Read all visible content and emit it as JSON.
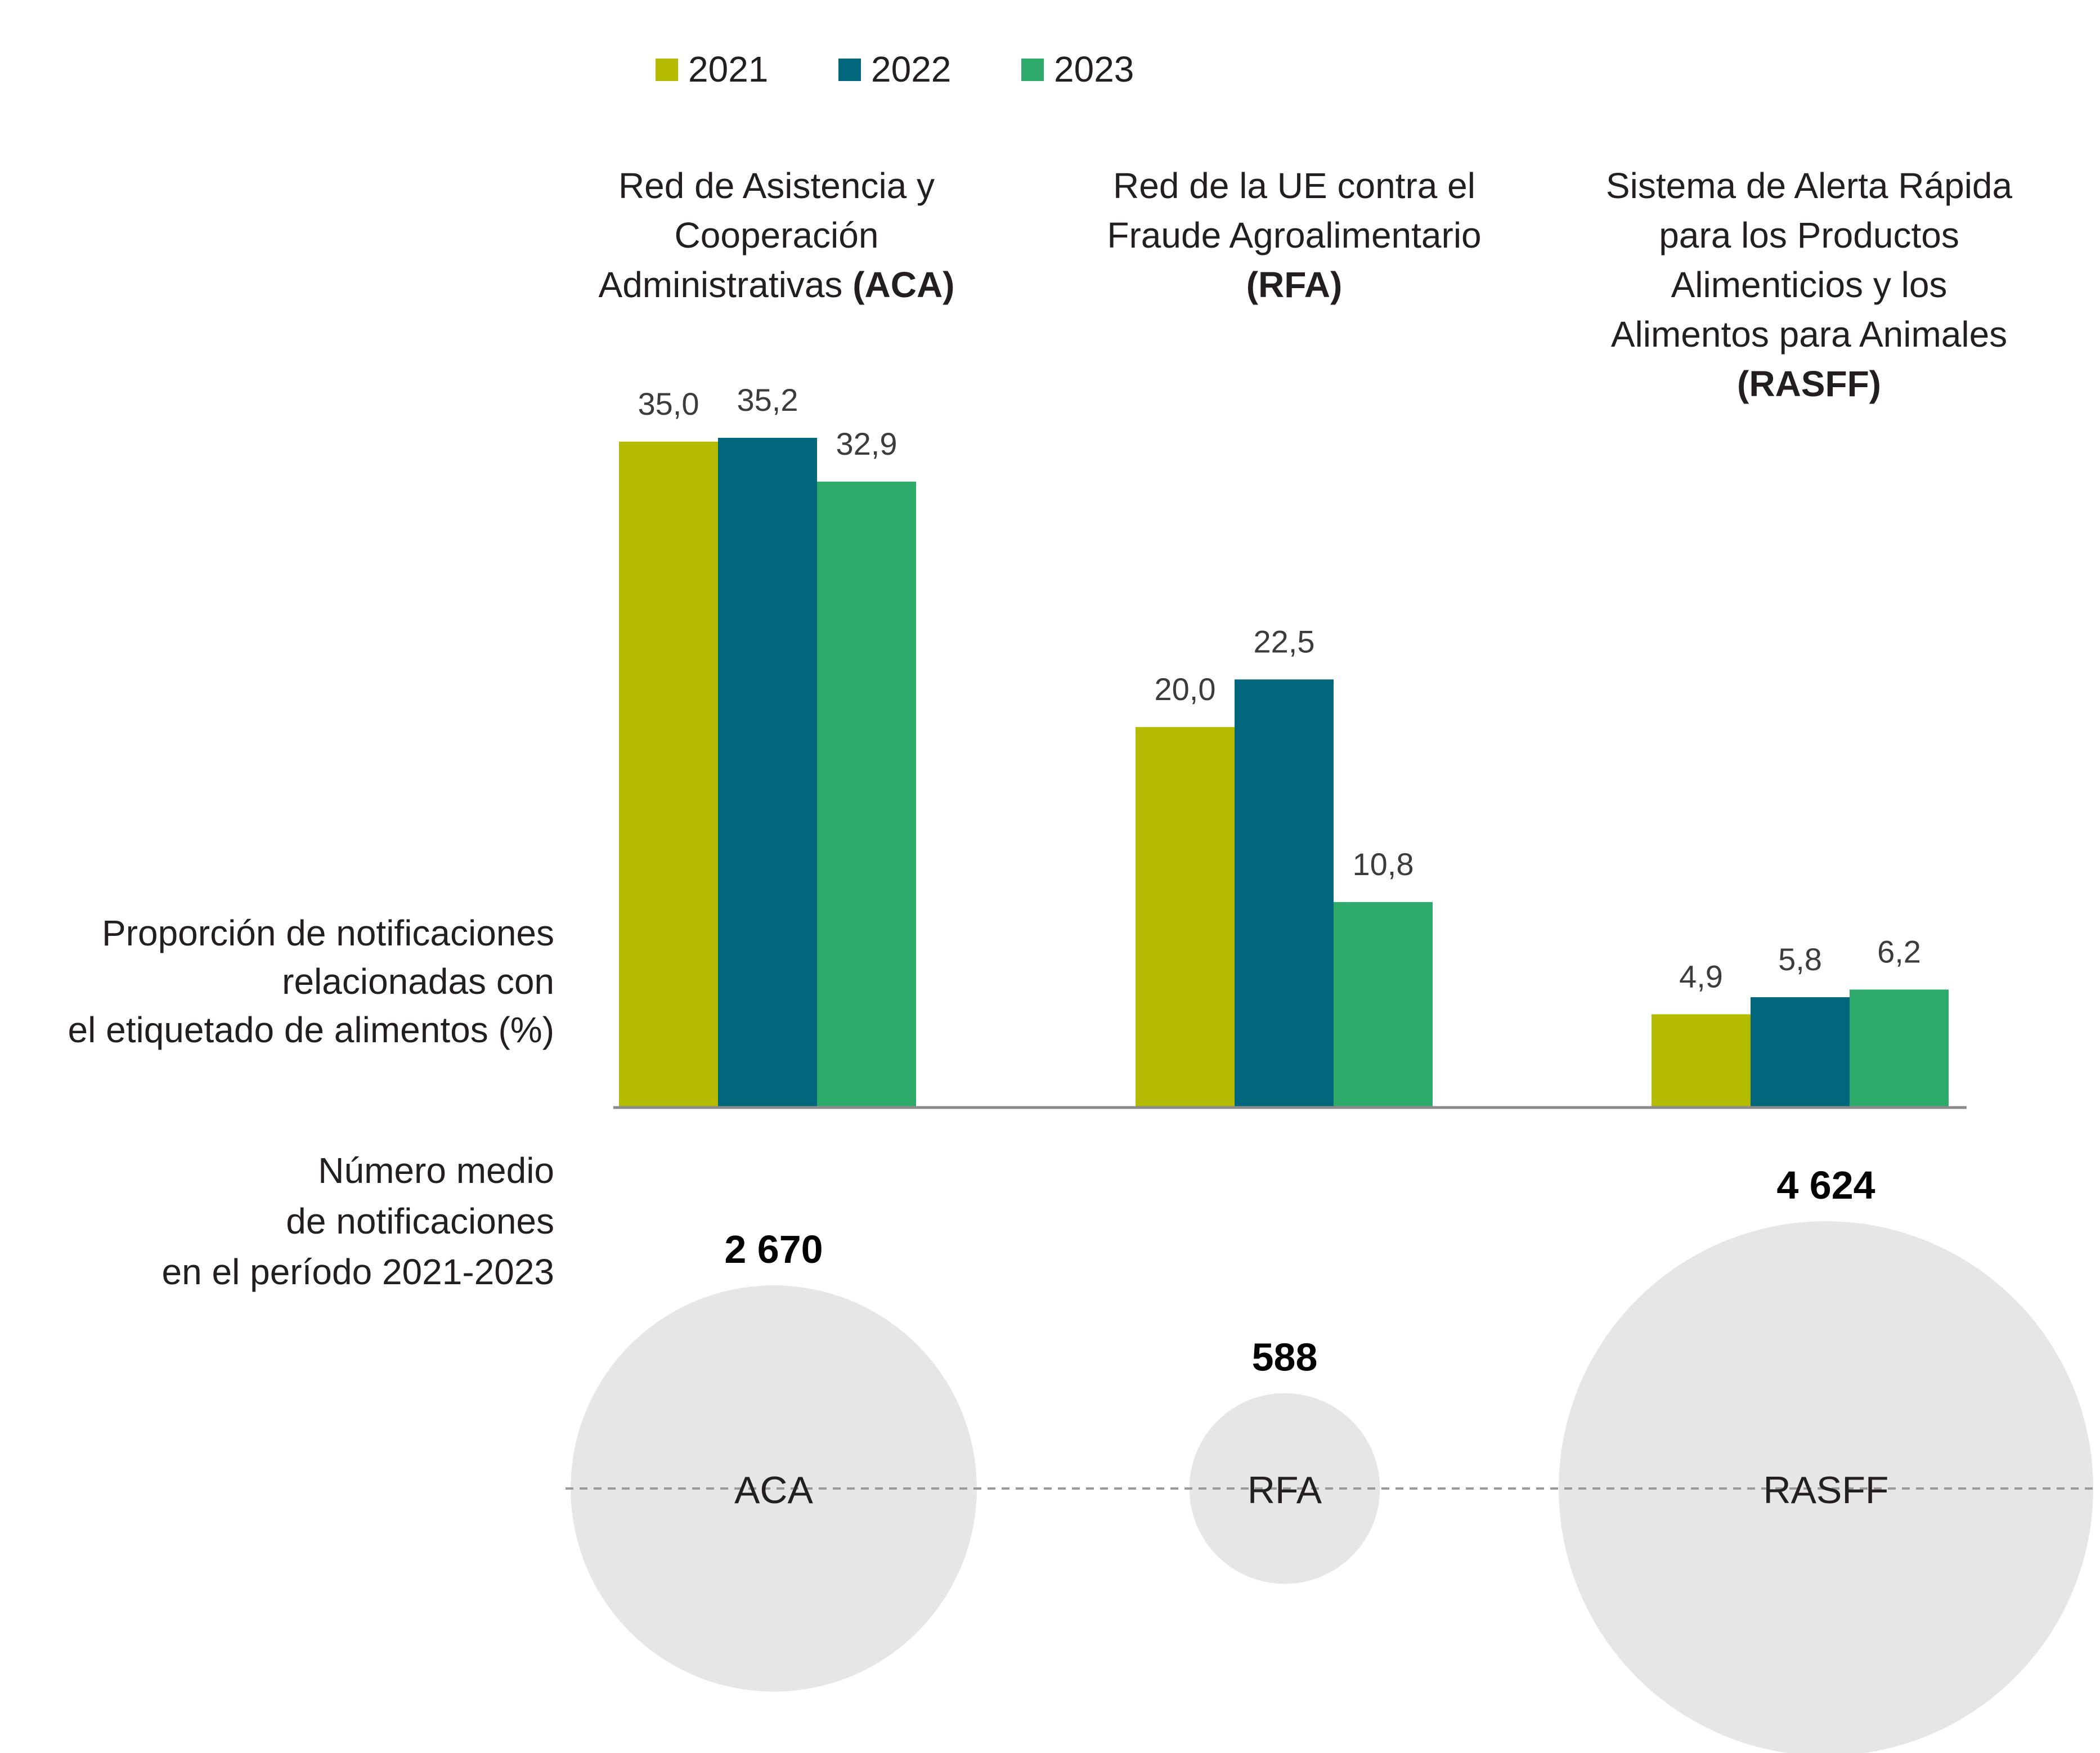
{
  "legend": [
    {
      "label": "2021",
      "color": "#b5bb00"
    },
    {
      "label": "2022",
      "color": "#00677d"
    },
    {
      "label": "2023",
      "color": "#2eaa6b"
    }
  ],
  "row_labels": {
    "proportion": [
      "Proporción de notificaciones",
      "relacionadas con",
      "el etiquetado de alimentos (%)"
    ],
    "average": [
      "Número medio",
      "de notificaciones",
      "en el período 2021-2023"
    ]
  },
  "chart_data": [
    {
      "type": "bar",
      "categories": [
        "ACA",
        "RFA",
        "RASFF"
      ],
      "category_titles": [
        {
          "lines": [
            "Red de Asistencia y",
            "Cooperación"
          ],
          "last_line": "Administrativas ",
          "bold": "(ACA)"
        },
        {
          "lines": [
            "Red de la UE contra el",
            "Fraude Agroalimentario"
          ],
          "last_line": "",
          "bold": "(RFA)"
        },
        {
          "lines": [
            "Sistema de Alerta Rápida",
            "para los Productos",
            "Alimenticios y los",
            "Alimentos para Animales"
          ],
          "last_line": "",
          "bold": "(RASFF)"
        }
      ],
      "series": [
        {
          "name": "2021",
          "values": [
            35.0,
            20.0,
            4.9
          ],
          "labels": [
            "35,0",
            "20,0",
            "4,9"
          ]
        },
        {
          "name": "2022",
          "values": [
            35.2,
            22.5,
            5.8
          ],
          "labels": [
            "35,2",
            "22,5",
            "5,8"
          ]
        },
        {
          "name": "2023",
          "values": [
            32.9,
            10.8,
            6.2
          ],
          "labels": [
            "32,9",
            "10,8",
            "6,2"
          ]
        }
      ],
      "ylim": [
        0,
        35.2
      ],
      "grid": false,
      "legend_position": "top"
    },
    {
      "type": "bubble",
      "categories": [
        "ACA",
        "RFA",
        "RASFF"
      ],
      "values": [
        2670,
        588,
        4624
      ],
      "value_labels": [
        "2 670",
        "588",
        "4 624"
      ],
      "bubble_color": "#e6e6e6"
    }
  ],
  "colors": {
    "text": "#231f20",
    "value_label": "#3c3c3c",
    "axis": "#8c8c8c",
    "dash": "#9a9a9a"
  }
}
